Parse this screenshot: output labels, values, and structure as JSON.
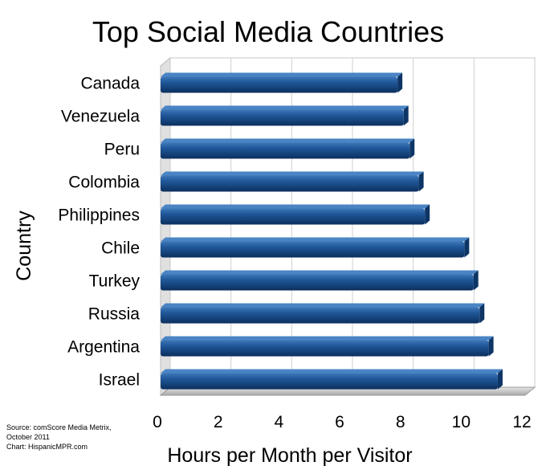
{
  "chart_data": {
    "type": "bar",
    "orientation": "horizontal",
    "title": "Top Social Media Countries",
    "xlabel": "Hours per Month per Visitor",
    "ylabel": "Country",
    "categories": [
      "Canada",
      "Venezuela",
      "Peru",
      "Colombia",
      "Philippines",
      "Chile",
      "Turkey",
      "Russia",
      "Argentina",
      "Israel"
    ],
    "values": [
      7.8,
      8.0,
      8.2,
      8.5,
      8.7,
      10.0,
      10.3,
      10.5,
      10.8,
      11.1
    ],
    "xlim": [
      0,
      12
    ],
    "xticks": [
      "0",
      "2",
      "4",
      "6",
      "8",
      "10",
      "12"
    ],
    "grid": true,
    "bar_color": "#1a4f8f",
    "source": [
      "Source: comScore Media Metrix,",
      "October 2011",
      "Chart: HispanicMPR.com"
    ]
  }
}
